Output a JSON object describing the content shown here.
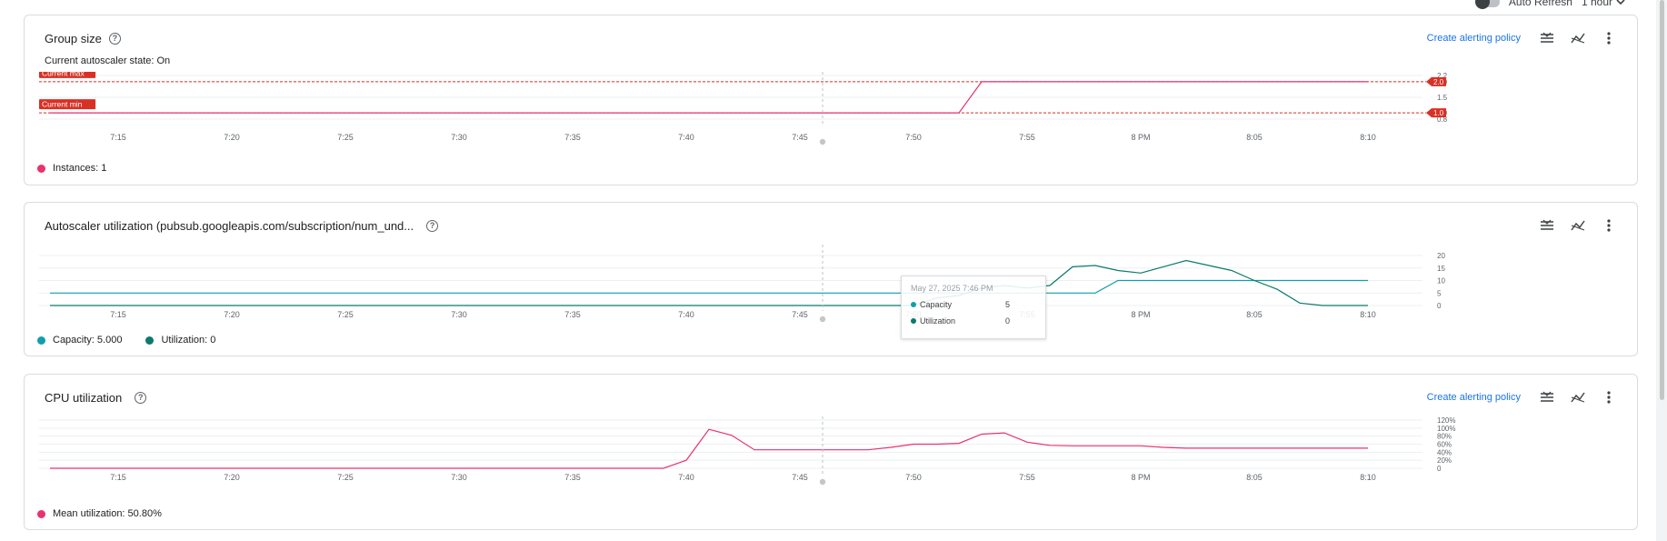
{
  "header": {
    "auto_refresh_label": "Auto Refresh",
    "time_range_label": "1 hour"
  },
  "x_ticks": [
    "7:15",
    "7:20",
    "7:25",
    "7:30",
    "7:35",
    "7:40",
    "7:45",
    "7:50",
    "7:55",
    "8 PM",
    "8:05",
    "8:10"
  ],
  "group_size": {
    "title": "Group size",
    "subtitle": "Current autoscaler state: On",
    "alert_label": "Create alerting policy",
    "max_label": "Current max",
    "min_label": "Current min",
    "max_value_label": "2.0",
    "min_value_label": "1.0",
    "legend_label": "Instances: 1"
  },
  "autoscaler": {
    "title": "Autoscaler utilization (pubsub.googleapis.com/subscription/num_und...",
    "legend_capacity": "Capacity: 5.000",
    "legend_utilization": "Utilization: 0",
    "tooltip": {
      "time": "May 27, 2025 7:46 PM",
      "capacity_label": "Capacity",
      "capacity_value": "5",
      "utilization_label": "Utilization",
      "utilization_value": "0"
    }
  },
  "cpu": {
    "title": "CPU utilization",
    "alert_label": "Create alerting policy",
    "legend_label": "Mean utilization: 50.80%"
  },
  "colors": {
    "instances": "#e8336d",
    "capacity": "#129eaf",
    "utilization": "#0b7a6b",
    "cpu": "#e8336d",
    "threshold": "#d93025",
    "link": "#1a73e8"
  },
  "icons": [
    "help-icon",
    "legend-toggle-icon",
    "chart-type-icon",
    "more-vert-icon",
    "chevron-down-icon"
  ],
  "chart_data": [
    {
      "type": "line",
      "title": "Group size",
      "x": [
        "7:12",
        "7:15",
        "7:20",
        "7:25",
        "7:30",
        "7:35",
        "7:40",
        "7:45",
        "7:50",
        "7:52",
        "7:53",
        "7:55",
        "8 PM",
        "8:05",
        "8:10"
      ],
      "series": [
        {
          "name": "Instances",
          "values": [
            1,
            1,
            1,
            1,
            1,
            1,
            1,
            1,
            1,
            1,
            2,
            2,
            2,
            2,
            2
          ]
        }
      ],
      "thresholds": [
        {
          "name": "Current max",
          "value": 2.0
        },
        {
          "name": "Current min",
          "value": 1.0
        }
      ],
      "y_ticks": [
        "0.8",
        "1.0",
        "1.5",
        "2.0",
        "2.2"
      ],
      "ylim": [
        0.8,
        2.2
      ]
    },
    {
      "type": "line",
      "title": "Autoscaler utilization (pubsub.googleapis.com/subscription/num_und...",
      "x": [
        "7:12",
        "7:45",
        "7:50",
        "7:51",
        "7:52",
        "7:53",
        "7:54",
        "7:55",
        "7:56",
        "7:57",
        "7:58",
        "7:59",
        "8:00",
        "8:01",
        "8:02",
        "8:03",
        "8:04",
        "8:05",
        "8:06",
        "8:07",
        "8:08",
        "8:09",
        "8:10"
      ],
      "series": [
        {
          "name": "Capacity",
          "values": [
            5,
            5,
            5,
            5,
            5,
            5,
            5,
            5,
            5,
            5,
            5,
            10,
            10,
            10,
            10,
            10,
            10,
            10,
            10,
            10,
            10,
            10,
            10
          ]
        },
        {
          "name": "Utilization",
          "values": [
            0,
            0,
            0,
            3,
            4,
            7,
            8,
            7,
            8,
            15.5,
            16,
            14,
            13,
            15.5,
            18,
            16,
            14,
            10,
            6.5,
            1,
            0,
            0,
            0
          ]
        }
      ],
      "y_ticks": [
        "0",
        "5",
        "10",
        "15",
        "20"
      ],
      "ylim": [
        0,
        20
      ]
    },
    {
      "type": "line",
      "title": "CPU utilization",
      "x": [
        "7:12",
        "7:39",
        "7:40",
        "7:41",
        "7:42",
        "7:43",
        "7:48",
        "7:49",
        "7:50",
        "7:51",
        "7:52",
        "7:53",
        "7:54",
        "7:55",
        "7:56",
        "7:57",
        "8:00",
        "8:01",
        "8:02",
        "8:05",
        "8:10"
      ],
      "series": [
        {
          "name": "Mean utilization",
          "values": [
            0,
            0,
            20,
            97,
            82,
            46,
            46,
            52,
            60,
            60,
            62,
            85,
            88,
            65,
            57,
            56,
            56,
            52,
            50,
            50,
            50
          ]
        }
      ],
      "y_ticks": [
        "0",
        "20%",
        "40%",
        "60%",
        "80%",
        "100%",
        "120%"
      ],
      "ylim": [
        0,
        120
      ]
    }
  ]
}
